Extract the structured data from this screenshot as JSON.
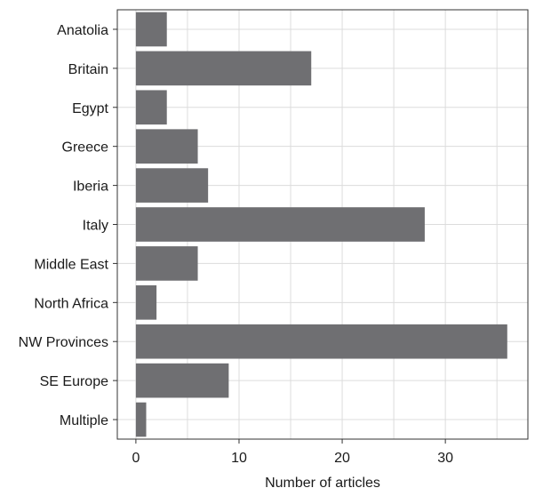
{
  "chart_data": {
    "type": "bar",
    "orientation": "horizontal",
    "categories": [
      "Anatolia",
      "Britain",
      "Egypt",
      "Greece",
      "Iberia",
      "Italy",
      "Middle East",
      "North Africa",
      "NW Provinces",
      "SE Europe",
      "Multiple"
    ],
    "values": [
      3,
      17,
      3,
      6,
      7,
      28,
      6,
      2,
      36,
      9,
      1
    ],
    "xlabel": "Number of articles",
    "ylabel": "",
    "xlim": [
      -1.8,
      38
    ],
    "xticks": [
      0,
      10,
      20,
      30
    ],
    "grid": true,
    "colors": {
      "bar": "#6f6f72",
      "grid": "#dcdcdc",
      "frame": "#333333"
    }
  }
}
